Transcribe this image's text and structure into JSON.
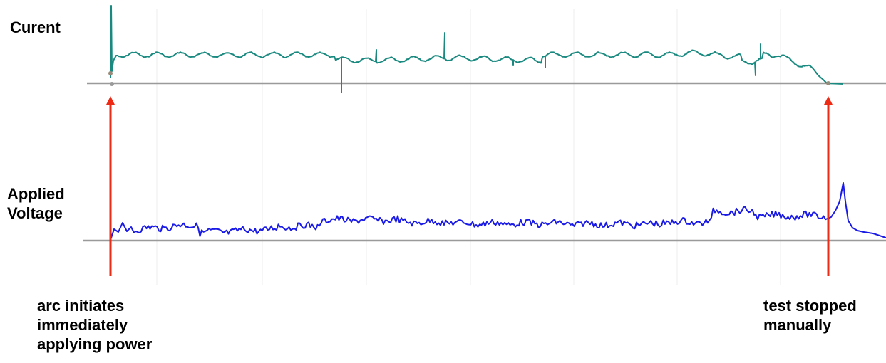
{
  "chart_data": [
    {
      "type": "line",
      "panel": "top",
      "title": "Curent",
      "xlabel": "",
      "ylabel": "",
      "grid": true,
      "legend": "none",
      "series": [
        {
          "values_note": "",
          "color": "#1a8a80"
        }
      ]
    },
    {
      "type": "line",
      "panel": "bottom",
      "title": "Applied\nVoltage",
      "xlabel": "",
      "ylabel": "",
      "grid": true,
      "legend": "none",
      "series": [
        {
          "color": "#1a1ae6"
        }
      ]
    }
  ],
  "annotations": {
    "start": "arc initiates\nimmediately\napplying power",
    "stop": "test stopped\nmanually"
  },
  "colors": {
    "current_line": "#1a8a80",
    "voltage_line": "#1a1ae6",
    "baseline": "#9a9a9a",
    "arrow": "#ee2a15",
    "grid": "#ececec",
    "marker": "#9a8a7a"
  }
}
